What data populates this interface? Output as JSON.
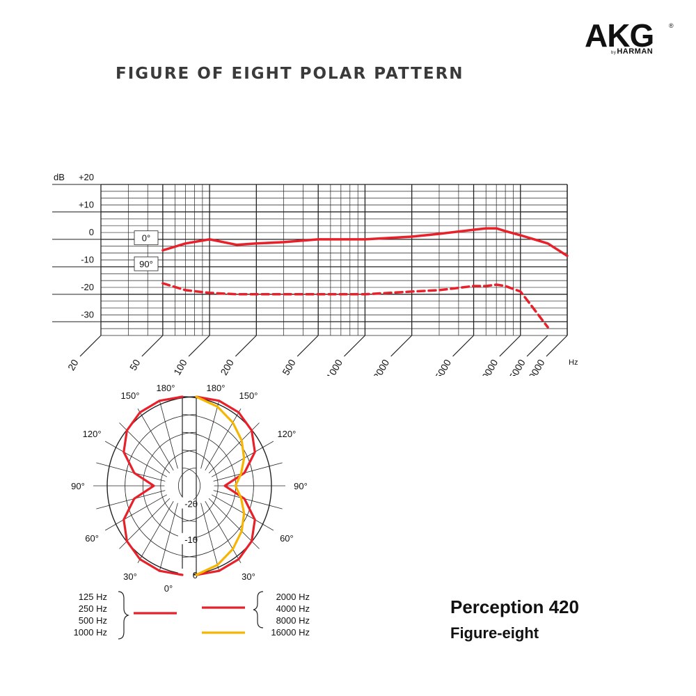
{
  "brand": {
    "name": "AKG",
    "registered": "®",
    "by": "by",
    "parent": "HARMAN"
  },
  "page_title": "FIGURE OF EIGHT POLAR PATTERN",
  "product": {
    "name": "Perception 420",
    "pattern": "Figure-eight"
  },
  "colors": {
    "red": "#e8202a",
    "yellow": "#f7b500",
    "grid": "#222222"
  },
  "chart_data": [
    {
      "type": "line",
      "xscale": "log",
      "xlim": [
        20,
        20000
      ],
      "ylim": [
        -35,
        20
      ],
      "y_unit": "dB",
      "x_unit": "Hz",
      "y_tick_labels": [
        "+20",
        "+10",
        "0",
        "-10",
        "-20",
        "-30"
      ],
      "y_tick_values": [
        20,
        10,
        0,
        -10,
        -20,
        -30
      ],
      "x_tick_labels": [
        "20",
        "50",
        "100",
        "200",
        "500",
        "1000",
        "2000",
        "5000",
        "10000",
        "15000",
        "20000"
      ],
      "x_tick_values": [
        20,
        50,
        100,
        200,
        500,
        1000,
        2000,
        5000,
        10000,
        15000,
        20000
      ],
      "grid": true,
      "series": [
        {
          "name": "0°",
          "style": "solid",
          "color": "#e8202a",
          "x": [
            50,
            70,
            100,
            150,
            200,
            300,
            500,
            1000,
            2000,
            3000,
            5000,
            6000,
            7000,
            8000,
            10000,
            15000,
            20000
          ],
          "y": [
            -4,
            -1.5,
            0,
            -2,
            -1.5,
            -1,
            0,
            0,
            1,
            2,
            3.5,
            4,
            4,
            3,
            1.5,
            -1.5,
            -6
          ]
        },
        {
          "name": "90°",
          "style": "dashed",
          "color": "#e8202a",
          "x": [
            50,
            70,
            100,
            150,
            200,
            300,
            500,
            1000,
            2000,
            3000,
            5000,
            6000,
            7000,
            8000,
            10000,
            11000,
            15000
          ],
          "y": [
            -16,
            -18.5,
            -19.5,
            -20,
            -20,
            -20,
            -20,
            -20,
            -19,
            -18.5,
            -17,
            -17,
            -16.5,
            -17,
            -19,
            -22,
            -32
          ]
        }
      ]
    },
    {
      "type": "polar",
      "r_tick_labels": [
        "-20",
        "-10",
        "0"
      ],
      "r_tick_values": [
        -20,
        -10,
        0
      ],
      "angle_labels": [
        "180°",
        "150°",
        "120°",
        "90°",
        "60°",
        "30°",
        "0°"
      ],
      "angle_values": [
        180,
        150,
        120,
        90,
        60,
        30,
        0
      ],
      "rlim": [
        -25,
        0
      ],
      "series": [
        {
          "name": "125 Hz 250 Hz 500 Hz 1000 Hz",
          "side": "left",
          "color": "#e8202a",
          "theta": [
            0,
            15,
            30,
            45,
            60,
            75,
            90,
            105,
            120,
            135,
            150,
            165,
            180
          ],
          "r": [
            0,
            -0.3,
            -1.2,
            -3,
            -6,
            -11,
            -17,
            -11,
            -6,
            -3,
            -1.2,
            -0.3,
            0
          ]
        },
        {
          "name": "2000 Hz 4000 Hz 8000 Hz",
          "side": "right",
          "color": "#e8202a",
          "theta": [
            0,
            15,
            30,
            45,
            60,
            75,
            90,
            105,
            120,
            135,
            150,
            165,
            180
          ],
          "r": [
            0,
            -0.3,
            -1.2,
            -3,
            -6,
            -11,
            -17,
            -11,
            -6,
            -3,
            -1.2,
            -0.3,
            0
          ]
        },
        {
          "name": "16000 Hz",
          "side": "right",
          "color": "#f7b500",
          "theta": [
            0,
            15,
            30,
            45,
            60,
            75,
            90,
            105,
            120,
            135,
            150,
            165,
            180
          ],
          "r": [
            0,
            -2,
            -4.5,
            -7,
            -9.5,
            -12,
            -14,
            -12,
            -9.5,
            -7,
            -4.5,
            -2,
            0
          ]
        }
      ],
      "legend": {
        "left": [
          "125 Hz",
          "250 Hz",
          "500 Hz",
          "1000 Hz"
        ],
        "right_red": [
          "2000 Hz",
          "4000 Hz",
          "8000 Hz"
        ],
        "right_yellow": [
          "16000 Hz"
        ]
      }
    }
  ]
}
